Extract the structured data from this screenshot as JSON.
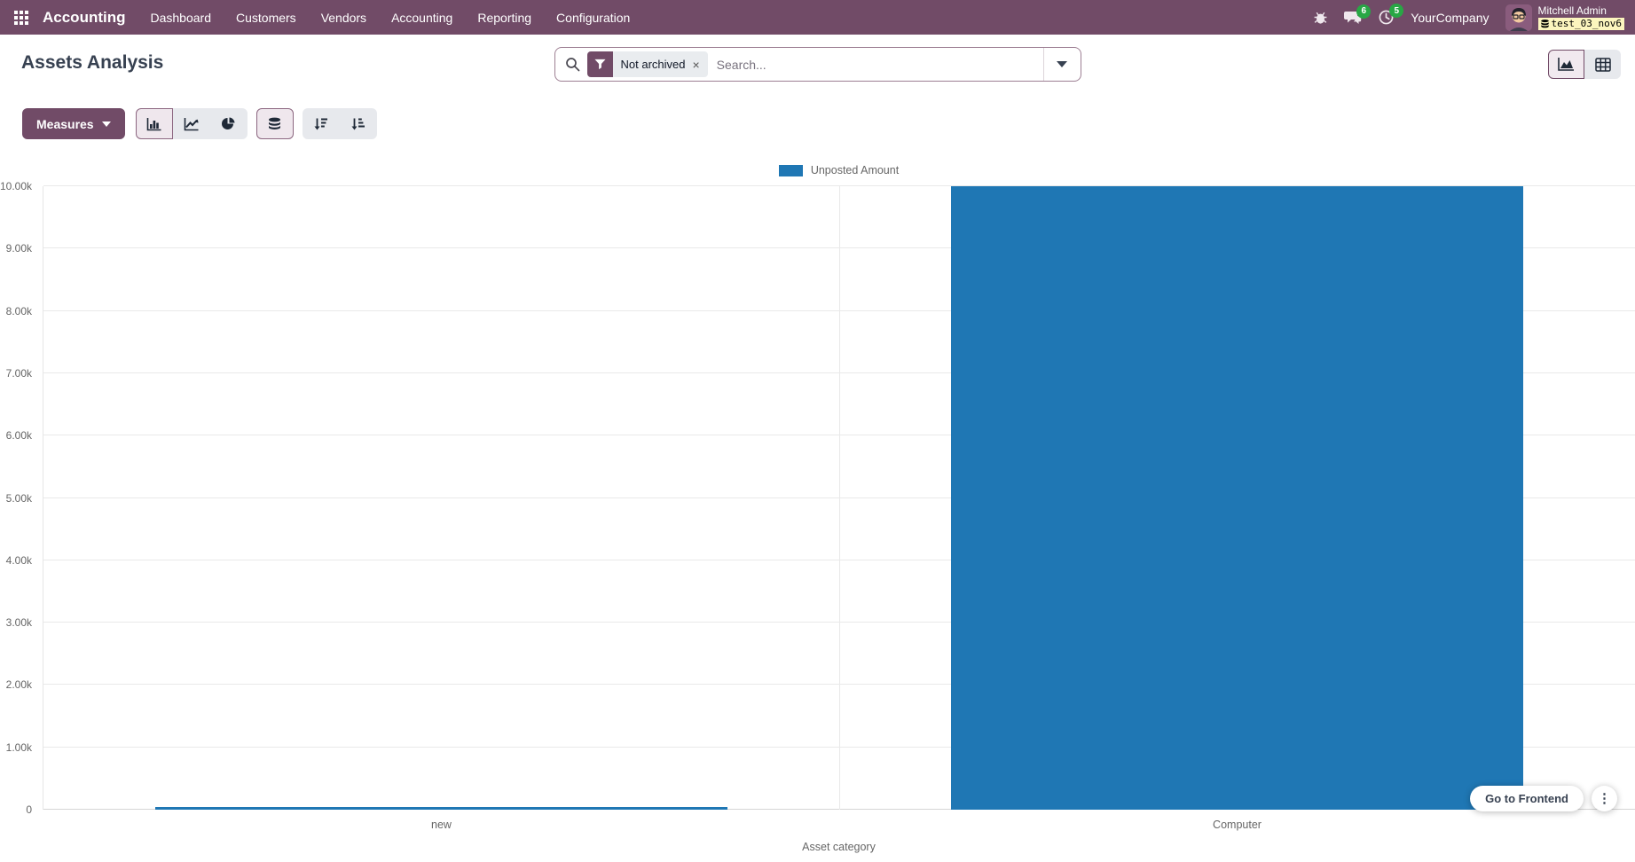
{
  "navbar": {
    "app_name": "Accounting",
    "menu_items": [
      {
        "label": "Dashboard"
      },
      {
        "label": "Customers"
      },
      {
        "label": "Vendors"
      },
      {
        "label": "Accounting"
      },
      {
        "label": "Reporting"
      },
      {
        "label": "Configuration"
      }
    ],
    "systray": {
      "company": "YourCompany",
      "user_name": "Mitchell Admin",
      "database": "test_03_nov6",
      "message_count": "6",
      "activity_count": "5"
    }
  },
  "control_panel": {
    "title": "Assets Analysis",
    "search": {
      "facet_label": "Not archived",
      "facet_remove": "×",
      "placeholder": "Search..."
    }
  },
  "toolbar": {
    "measures_label": "Measures"
  },
  "chart_data": {
    "type": "bar",
    "title": "",
    "categories": [
      "new",
      "Computer"
    ],
    "series": [
      {
        "name": "Unposted Amount",
        "color": "#1f77b4",
        "values": [
          50,
          10000
        ]
      }
    ],
    "xlabel": "Asset category",
    "ylabel": "",
    "ylim": [
      0,
      10000
    ],
    "yticks": [
      {
        "value": 0,
        "label": "0"
      },
      {
        "value": 1000,
        "label": "1.00k"
      },
      {
        "value": 2000,
        "label": "2.00k"
      },
      {
        "value": 3000,
        "label": "3.00k"
      },
      {
        "value": 4000,
        "label": "4.00k"
      },
      {
        "value": 5000,
        "label": "5.00k"
      },
      {
        "value": 6000,
        "label": "6.00k"
      },
      {
        "value": 7000,
        "label": "7.00k"
      },
      {
        "value": 8000,
        "label": "8.00k"
      },
      {
        "value": 9000,
        "label": "9.00k"
      },
      {
        "value": 10000,
        "label": "10.00k"
      }
    ],
    "legend_position": "top",
    "grid": true
  },
  "floating": {
    "frontend_label": "Go to Frontend",
    "kebab_glyph": "⋮"
  },
  "colors": {
    "navbar_bg": "#714B67",
    "primary": "#714B67",
    "bar_blue": "#1f77b4",
    "badge_green": "#28a745",
    "db_badge_bg": "#fcf5be"
  }
}
